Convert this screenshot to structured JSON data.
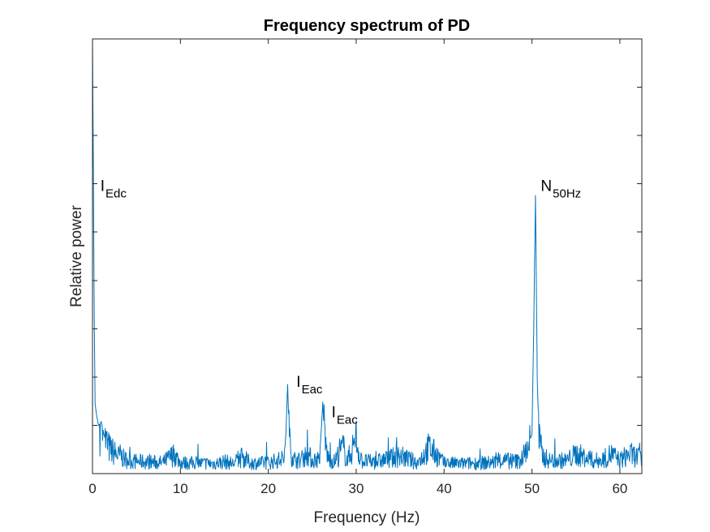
{
  "chart_data": {
    "type": "line",
    "title": "Frequency spectrum of PD",
    "xlabel": "Frequency (Hz)",
    "ylabel": "Relative power",
    "xlim": [
      0,
      62.5
    ],
    "ylim": [
      0,
      1
    ],
    "x_ticks": [
      0,
      10,
      20,
      30,
      40,
      50,
      60
    ],
    "y_ticks": [
      0.111,
      0.222,
      0.333,
      0.444,
      0.556,
      0.667,
      0.778,
      0.889
    ],
    "y_tick_labels_visible": false,
    "grid": false,
    "line_color": "#0072BD",
    "series_points": [
      [
        0.0,
        1.0
      ],
      [
        0.1,
        0.7
      ],
      [
        0.2,
        0.35
      ],
      [
        0.3,
        0.16
      ],
      [
        0.5,
        0.13
      ],
      [
        0.7,
        0.11
      ],
      [
        1.0,
        0.12
      ],
      [
        1.3,
        0.09
      ],
      [
        1.6,
        0.07
      ],
      [
        2.0,
        0.055
      ],
      [
        2.5,
        0.048
      ],
      [
        3.0,
        0.04
      ],
      [
        3.2,
        0.043
      ],
      [
        3.5,
        0.035
      ],
      [
        4.0,
        0.03
      ],
      [
        5.0,
        0.028
      ],
      [
        6.0,
        0.027
      ],
      [
        7.0,
        0.026
      ],
      [
        8.0,
        0.025
      ],
      [
        9.3,
        0.045
      ],
      [
        10.0,
        0.025
      ],
      [
        12.0,
        0.024
      ],
      [
        14.0,
        0.023
      ],
      [
        15.0,
        0.028
      ],
      [
        16.0,
        0.023
      ],
      [
        17.0,
        0.038
      ],
      [
        18.0,
        0.024
      ],
      [
        20.0,
        0.025
      ],
      [
        21.0,
        0.03
      ],
      [
        21.8,
        0.035
      ],
      [
        22.0,
        0.09
      ],
      [
        22.2,
        0.205
      ],
      [
        22.4,
        0.07
      ],
      [
        22.8,
        0.035
      ],
      [
        23.5,
        0.03
      ],
      [
        24.5,
        0.045
      ],
      [
        25.0,
        0.03
      ],
      [
        25.8,
        0.035
      ],
      [
        26.0,
        0.09
      ],
      [
        26.2,
        0.165
      ],
      [
        26.4,
        0.08
      ],
      [
        26.8,
        0.035
      ],
      [
        27.5,
        0.028
      ],
      [
        28.5,
        0.06
      ],
      [
        29.0,
        0.03
      ],
      [
        30.0,
        0.08
      ],
      [
        30.5,
        0.03
      ],
      [
        32.0,
        0.026
      ],
      [
        35.0,
        0.04
      ],
      [
        37.0,
        0.025
      ],
      [
        38.3,
        0.06
      ],
      [
        40.0,
        0.024
      ],
      [
        42.0,
        0.023
      ],
      [
        45.0,
        0.025
      ],
      [
        47.0,
        0.03
      ],
      [
        48.5,
        0.028
      ],
      [
        49.0,
        0.04
      ],
      [
        49.5,
        0.06
      ],
      [
        50.0,
        0.09
      ],
      [
        50.2,
        0.33
      ],
      [
        50.4,
        0.64
      ],
      [
        50.6,
        0.22
      ],
      [
        50.8,
        0.08
      ],
      [
        51.2,
        0.04
      ],
      [
        52.0,
        0.03
      ],
      [
        54.0,
        0.03
      ],
      [
        55.0,
        0.045
      ],
      [
        57.0,
        0.03
      ],
      [
        58.0,
        0.03
      ],
      [
        59.0,
        0.045
      ],
      [
        60.0,
        0.03
      ],
      [
        61.0,
        0.045
      ],
      [
        62.5,
        0.035
      ]
    ],
    "annotations": [
      {
        "main": "I",
        "sub": "Edc",
        "x": 0.9,
        "y": 0.65
      },
      {
        "main": "I",
        "sub": "Eac",
        "x": 23.2,
        "y": 0.2
      },
      {
        "main": "I",
        "sub": "Eac",
        "x": 27.2,
        "y": 0.13
      },
      {
        "main": "N",
        "sub": "50Hz",
        "x": 51.0,
        "y": 0.65
      }
    ]
  }
}
